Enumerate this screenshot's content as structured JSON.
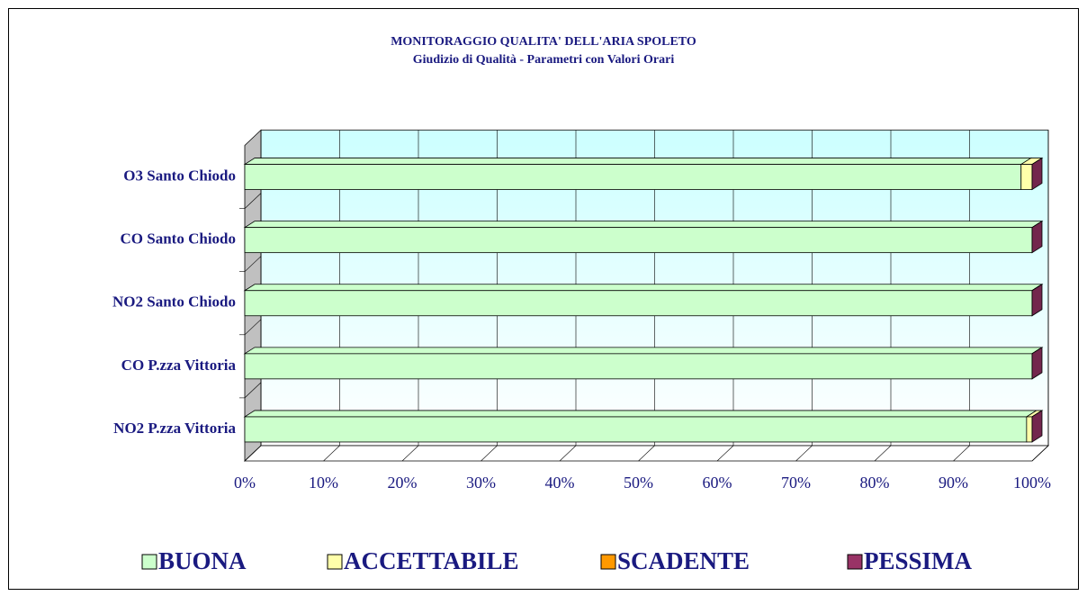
{
  "chart_data": {
    "type": "stacked-bar-3d",
    "title": "MONITORAGGIO QUALITA' DELL'ARIA SPOLETO",
    "subtitle": "Giudizio di Qualità - Parametri con Valori Orari",
    "categories": [
      "O3   Santo Chiodo",
      "CO   Santo Chiodo",
      "NO2   Santo Chiodo",
      "CO   P.zza Vittoria",
      "NO2   P.zza Vittoria"
    ],
    "series": [
      {
        "name": "BUONA",
        "color": "#ccffcc",
        "values": [
          98.6,
          100,
          100,
          100,
          99.3
        ]
      },
      {
        "name": "ACCETTABILE",
        "color": "#ffffaa",
        "values": [
          1.4,
          0,
          0,
          0,
          0.7
        ]
      },
      {
        "name": "SCADENTE",
        "color": "#ff9900",
        "values": [
          0,
          0,
          0,
          0,
          0
        ]
      },
      {
        "name": "PESSIMA",
        "color": "#993366",
        "values": [
          0,
          0,
          0,
          0,
          0
        ]
      }
    ],
    "xlim": [
      0,
      100
    ],
    "xticks": [
      {
        "value": 0,
        "label": "0%"
      },
      {
        "value": 10,
        "label": "10%"
      },
      {
        "value": 20,
        "label": "20%"
      },
      {
        "value": 30,
        "label": "30%"
      },
      {
        "value": 40,
        "label": "40%"
      },
      {
        "value": 50,
        "label": "50%"
      },
      {
        "value": 60,
        "label": "60%"
      },
      {
        "value": 70,
        "label": "70%"
      },
      {
        "value": 80,
        "label": "80%"
      },
      {
        "value": 90,
        "label": "90%"
      },
      {
        "value": 100,
        "label": "100%"
      }
    ],
    "grid": true,
    "legend": "bottom"
  }
}
